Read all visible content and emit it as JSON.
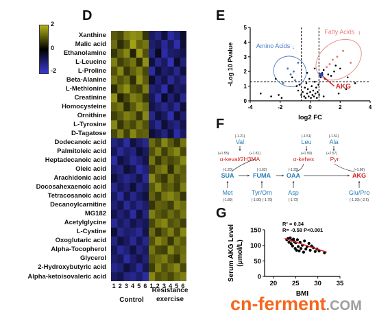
{
  "panel_d": {
    "letter": "D",
    "colorbar": {
      "max_label": "2",
      "mid_label": "0",
      "min_label": "-2",
      "high_color": "#b3b31a",
      "mid_color": "#000000",
      "low_color": "#3a3ad6"
    },
    "metabolites": [
      "Xanthine",
      "Malic acid",
      "Ethanolamine",
      "L-Leucine",
      "L-Proline",
      "Beta-Alanine",
      "L-Methionine",
      "Creatinine",
      "Homocysteine",
      "Ornithine",
      "L-Tyrosine",
      "D-Tagatose",
      "Dodecanoic acid",
      "Palmitoleic acid",
      "Heptadecanoic acid",
      "Oleic acid",
      "Arachidonic acid",
      "Docosahexaenoic acid",
      "Tetracosanoic acid",
      "Decanoylcarnitine",
      "MG182",
      "Acetylglycine",
      "L-Cystine",
      "Oxoglutaric acid",
      "Alpha-Tocopherol",
      "Glycerol",
      "2-Hydroxybutyric acid",
      "Alpha-ketoisovaleric acid"
    ],
    "columns": [
      "1",
      "2",
      "3",
      "4",
      "5",
      "6",
      "1",
      "2",
      "3",
      "4",
      "5",
      "6"
    ],
    "group_labels": {
      "control": "Control",
      "resistance_line1": "Resistance",
      "resistance_line2": "exercise"
    }
  },
  "panel_e": {
    "letter": "E",
    "ylabel": "-Log 10 Pvalue",
    "xlabel": "log2 FC",
    "xticks": [
      "-4",
      "-2",
      "0",
      "2",
      "4"
    ],
    "yticks": [
      "0",
      "1",
      "2",
      "3",
      "4",
      "5"
    ],
    "label_amino": "Amino Acids",
    "label_fatty": "Fatty Acids",
    "label_akg": "AKG",
    "amino_color": "#4a78c8",
    "fatty_color": "#e88080",
    "akg_color": "#d42020"
  },
  "panel_f": {
    "letter": "F",
    "nodes": {
      "val": {
        "name": "Val",
        "fc": "(-1.21)"
      },
      "keval": {
        "name": "α-keval/2H3MA",
        "fc_left": "(+1.55)",
        "fc_right": "(+1.81)"
      },
      "leu": {
        "name": "Leu",
        "fc": "(-1.51)"
      },
      "ala": {
        "name": "Ala",
        "fc": "(-1.51)"
      },
      "kehex": {
        "name": "α-kehex",
        "fc": "(+1.99)"
      },
      "pyr": {
        "name": "Pyr",
        "fc": "(+2.57)"
      },
      "sua": {
        "name": "SUA",
        "fc": "(-1.20)"
      },
      "fuma": {
        "name": "FUMA",
        "fc": "(-1.62)"
      },
      "oaa": {
        "name": "OAA",
        "fc": "(-1.29)"
      },
      "akg": {
        "name": "AKG",
        "fc": "(+1.66)"
      },
      "met": {
        "name": "Met",
        "fc": "(-1.89)"
      },
      "tyrorn": {
        "name": "Tyr/Orn",
        "fc": "(-1.90)  (-1.79)"
      },
      "asp": {
        "name": "Asp",
        "fc": "(-1.72)"
      },
      "glupro": {
        "name": "Glu/Pro",
        "fc": "(-1.29) (-2.6)"
      }
    }
  },
  "panel_g": {
    "letter": "G",
    "r2": "R² = 0.34",
    "rstat": "R= -0.58 P<0.001",
    "ylabel_line1": "Serum AKG Level",
    "ylabel_line2": "(μmol/L)",
    "xlabel": "BMI",
    "xticks": [
      "20",
      "25",
      "30",
      "35"
    ],
    "yticks": [
      "0",
      "50",
      "100",
      "150"
    ],
    "fit_color": "#d42020"
  },
  "watermark": {
    "main": "cn-ferment",
    "ext": ".COM"
  },
  "chart_data": [
    {
      "type": "heatmap",
      "rows": [
        "Xanthine",
        "Malic acid",
        "Ethanolamine",
        "L-Leucine",
        "L-Proline",
        "Beta-Alanine",
        "L-Methionine",
        "Creatinine",
        "Homocysteine",
        "Ornithine",
        "L-Tyrosine",
        "D-Tagatose",
        "Dodecanoic acid",
        "Palmitoleic acid",
        "Heptadecanoic acid",
        "Oleic acid",
        "Arachidonic acid",
        "Docosahexaenoic acid",
        "Tetracosanoic acid",
        "Decanoylcarnitine",
        "MG182",
        "Acetylglycine",
        "L-Cystine",
        "Oxoglutaric acid",
        "Alpha-Tocopherol",
        "Glycerol",
        "2-Hydroxybutyric acid",
        "Alpha-ketoisovaleric acid"
      ],
      "columns": [
        "1",
        "2",
        "3",
        "4",
        "5",
        "6",
        "1",
        "2",
        "3",
        "4",
        "5",
        "6"
      ],
      "zlim": [
        -2,
        2
      ],
      "values": [
        [
          1.0,
          0.8,
          1.4,
          1.6,
          1.5,
          0.6,
          -0.9,
          -1.2,
          -0.6,
          -1.5,
          -1.1,
          -0.4
        ],
        [
          1.2,
          0.5,
          0.9,
          1.8,
          1.1,
          1.3,
          -1.0,
          -0.8,
          -1.4,
          -0.9,
          -1.6,
          -0.5
        ],
        [
          0.6,
          1.1,
          1.5,
          0.4,
          1.7,
          0.9,
          -1.2,
          -0.3,
          -1.5,
          -1.0,
          -0.9,
          -0.7
        ],
        [
          1.4,
          0.7,
          1.0,
          1.3,
          0.5,
          1.6,
          -0.6,
          -1.3,
          -0.9,
          -1.7,
          -0.4,
          -1.1
        ],
        [
          0.9,
          1.5,
          0.6,
          1.1,
          1.4,
          0.8,
          -1.5,
          -0.5,
          -1.0,
          -0.8,
          -1.3,
          -0.6
        ],
        [
          1.3,
          0.9,
          1.2,
          0.5,
          1.6,
          1.0,
          -0.4,
          -1.1,
          -0.7,
          -1.4,
          -0.9,
          -1.2
        ],
        [
          0.5,
          1.2,
          1.6,
          0.9,
          0.7,
          1.4,
          -1.1,
          -0.9,
          -1.6,
          -0.5,
          -1.0,
          -0.8
        ],
        [
          1.6,
          0.4,
          0.8,
          1.4,
          1.2,
          0.6,
          -0.8,
          -1.5,
          -0.4,
          -1.1,
          -0.6,
          -1.3
        ],
        [
          1.1,
          1.3,
          0.5,
          1.0,
          1.5,
          1.2,
          -0.7,
          -1.0,
          -1.3,
          -0.9,
          -1.4,
          -0.5
        ],
        [
          0.7,
          1.0,
          1.4,
          1.2,
          0.6,
          1.5,
          -1.3,
          -0.6,
          -0.9,
          -1.6,
          -0.5,
          -1.0
        ],
        [
          1.5,
          0.6,
          1.1,
          0.8,
          1.3,
          0.9,
          -0.9,
          -1.4,
          -0.5,
          -1.0,
          -1.2,
          -0.7
        ],
        [
          0.8,
          1.4,
          0.7,
          1.5,
          1.0,
          1.1,
          -0.5,
          -0.8,
          -1.2,
          -0.6,
          -1.5,
          -0.9
        ],
        [
          -1.2,
          -0.9,
          -1.5,
          -0.6,
          -1.0,
          -1.3,
          1.2,
          0.8,
          1.5,
          1.0,
          0.6,
          1.3
        ],
        [
          -0.8,
          -1.4,
          -1.0,
          -1.2,
          -0.5,
          -0.9,
          0.9,
          1.4,
          0.7,
          1.2,
          1.5,
          0.8
        ],
        [
          -1.5,
          -0.6,
          -0.9,
          -1.4,
          -1.1,
          -0.7,
          1.3,
          0.6,
          1.1,
          0.8,
          1.0,
          1.5
        ],
        [
          -1.0,
          -1.2,
          -0.5,
          -0.8,
          -1.5,
          -1.1,
          0.7,
          1.2,
          1.4,
          0.5,
          1.3,
          1.0
        ],
        [
          -0.6,
          -1.0,
          -1.3,
          -1.1,
          -0.7,
          -1.4,
          1.5,
          0.9,
          0.6,
          1.3,
          0.8,
          1.1
        ],
        [
          -1.3,
          -0.8,
          -1.1,
          -0.5,
          -1.2,
          -0.9,
          1.0,
          1.5,
          0.9,
          1.1,
          0.7,
          1.4
        ],
        [
          -0.9,
          -1.5,
          -0.7,
          -1.3,
          -0.9,
          -0.6,
          1.1,
          0.7,
          1.3,
          1.5,
          1.2,
          0.6
        ],
        [
          -1.1,
          -0.7,
          -1.4,
          -0.9,
          -1.3,
          -1.0,
          0.6,
          1.1,
          1.0,
          0.7,
          1.4,
          1.2
        ],
        [
          -0.7,
          -1.1,
          -0.8,
          -1.5,
          -0.6,
          -1.2,
          1.4,
          1.0,
          0.8,
          1.2,
          0.9,
          1.3
        ],
        [
          -1.4,
          -0.9,
          -1.2,
          -0.7,
          -1.0,
          -0.8,
          0.8,
          1.3,
          1.5,
          0.9,
          1.1,
          0.7
        ],
        [
          -0.5,
          -1.3,
          -1.0,
          -1.1,
          -1.4,
          -0.7,
          1.2,
          0.6,
          1.0,
          1.4,
          0.8,
          1.5
        ],
        [
          -1.2,
          -0.6,
          -0.9,
          -1.4,
          -0.8,
          -1.3,
          0.9,
          1.5,
          1.2,
          0.6,
          1.3,
          1.0
        ],
        [
          -0.8,
          -1.4,
          -1.1,
          -0.6,
          -1.2,
          -0.9,
          1.3,
          0.8,
          0.7,
          1.5,
          1.0,
          1.2
        ],
        [
          -1.0,
          -0.8,
          -1.5,
          -1.0,
          -0.7,
          -1.1,
          1.0,
          1.2,
          1.4,
          0.9,
          0.6,
          1.3
        ],
        [
          -1.3,
          -1.1,
          -0.6,
          -0.9,
          -1.4,
          -0.8,
          0.7,
          1.4,
          0.9,
          1.2,
          1.5,
          0.8
        ],
        [
          -0.9,
          -0.7,
          -1.2,
          -1.3,
          -1.0,
          -1.5,
          1.5,
          0.9,
          1.1,
          0.8,
          1.2,
          1.4
        ]
      ]
    },
    {
      "type": "scatter",
      "xlabel": "log2 FC",
      "ylabel": "-Log 10 Pvalue",
      "xlim": [
        -4,
        4
      ],
      "ylim": [
        0,
        5
      ],
      "threshold_y": 1.3,
      "threshold_x": [
        -0.585,
        0.585
      ],
      "points": [
        [
          -3.3,
          0.5
        ],
        [
          -2.6,
          0.3
        ],
        [
          -2.1,
          0.4
        ],
        [
          -1.9,
          0.2
        ],
        [
          -1.8,
          1.2
        ],
        [
          -1.5,
          2.2
        ],
        [
          -1.3,
          1.8
        ],
        [
          -1.2,
          1.6
        ],
        [
          -1.1,
          2.0
        ],
        [
          -1.0,
          1.4
        ],
        [
          -0.9,
          1.0
        ],
        [
          -0.8,
          0.7
        ],
        [
          -0.7,
          1.1
        ],
        [
          -0.6,
          0.4
        ],
        [
          -0.5,
          0.6
        ],
        [
          -0.4,
          0.3
        ],
        [
          -0.35,
          0.9
        ],
        [
          -0.3,
          0.2
        ],
        [
          -0.25,
          1.2
        ],
        [
          -0.2,
          0.5
        ],
        [
          -0.15,
          0.8
        ],
        [
          -0.1,
          0.3
        ],
        [
          -0.05,
          1.5
        ],
        [
          0.0,
          0.6
        ],
        [
          0.05,
          0.2
        ],
        [
          0.1,
          1.0
        ],
        [
          0.15,
          0.4
        ],
        [
          0.2,
          0.7
        ],
        [
          0.25,
          0.3
        ],
        [
          0.3,
          1.3
        ],
        [
          0.35,
          0.5
        ],
        [
          0.4,
          0.9
        ],
        [
          0.45,
          0.2
        ],
        [
          0.5,
          0.6
        ],
        [
          0.55,
          1.1
        ],
        [
          0.6,
          0.4
        ],
        [
          0.7,
          1.6
        ],
        [
          0.8,
          1.9
        ],
        [
          0.9,
          2.1
        ],
        [
          1.0,
          1.5
        ],
        [
          1.1,
          2.3
        ],
        [
          1.2,
          1.8
        ],
        [
          1.3,
          2.5
        ],
        [
          1.4,
          1.7
        ],
        [
          1.5,
          2.8
        ],
        [
          1.6,
          2.0
        ],
        [
          1.7,
          2.4
        ],
        [
          1.8,
          3.0
        ],
        [
          2.0,
          2.2
        ],
        [
          2.2,
          3.4
        ],
        [
          2.5,
          1.6
        ],
        [
          2.7,
          2.6
        ],
        [
          3.0,
          1.2
        ],
        [
          1.9,
          0.5
        ],
        [
          2.4,
          0.8
        ],
        [
          -2.3,
          1.5
        ],
        [
          -0.8,
          2.6
        ],
        [
          0.3,
          2.2
        ],
        [
          -0.2,
          1.9
        ],
        [
          0.9,
          0.3
        ]
      ],
      "amino_points": [
        [
          -1.5,
          2.2
        ],
        [
          -1.3,
          1.8
        ],
        [
          -1.1,
          2.0
        ],
        [
          -1.8,
          1.2
        ],
        [
          -1.0,
          1.4
        ],
        [
          -0.8,
          2.6
        ]
      ],
      "fatty_points": [
        [
          1.5,
          2.8
        ],
        [
          1.8,
          3.0
        ],
        [
          2.2,
          3.4
        ],
        [
          2.7,
          2.6
        ],
        [
          1.3,
          2.5
        ],
        [
          1.1,
          2.3
        ]
      ],
      "akg_point": [
        0.73,
        1.75
      ]
    },
    {
      "type": "scatter",
      "xlabel": "BMI",
      "ylabel": "Serum AKG Level (μmol/L)",
      "xlim": [
        18,
        35
      ],
      "ylim": [
        0,
        150
      ],
      "points": [
        [
          23.0,
          118
        ],
        [
          23.3,
          122
        ],
        [
          23.5,
          110
        ],
        [
          23.8,
          124
        ],
        [
          24.0,
          105
        ],
        [
          24.1,
          116
        ],
        [
          24.3,
          98
        ],
        [
          24.5,
          120
        ],
        [
          24.7,
          112
        ],
        [
          24.9,
          90
        ],
        [
          25.0,
          108
        ],
        [
          25.2,
          84
        ],
        [
          25.4,
          118
        ],
        [
          25.6,
          96
        ],
        [
          25.8,
          82
        ],
        [
          26.0,
          110
        ],
        [
          26.2,
          90
        ],
        [
          26.5,
          100
        ],
        [
          26.8,
          78
        ],
        [
          27.0,
          114
        ],
        [
          27.3,
          88
        ],
        [
          27.6,
          96
        ],
        [
          28.0,
          106
        ],
        [
          28.3,
          84
        ],
        [
          28.6,
          98
        ],
        [
          29.0,
          92
        ],
        [
          29.4,
          80
        ],
        [
          29.8,
          88
        ],
        [
          30.3,
          82
        ],
        [
          31.5,
          76
        ]
      ],
      "fit": {
        "x": [
          22.5,
          32.0
        ],
        "y": [
          122,
          78
        ]
      }
    }
  ]
}
